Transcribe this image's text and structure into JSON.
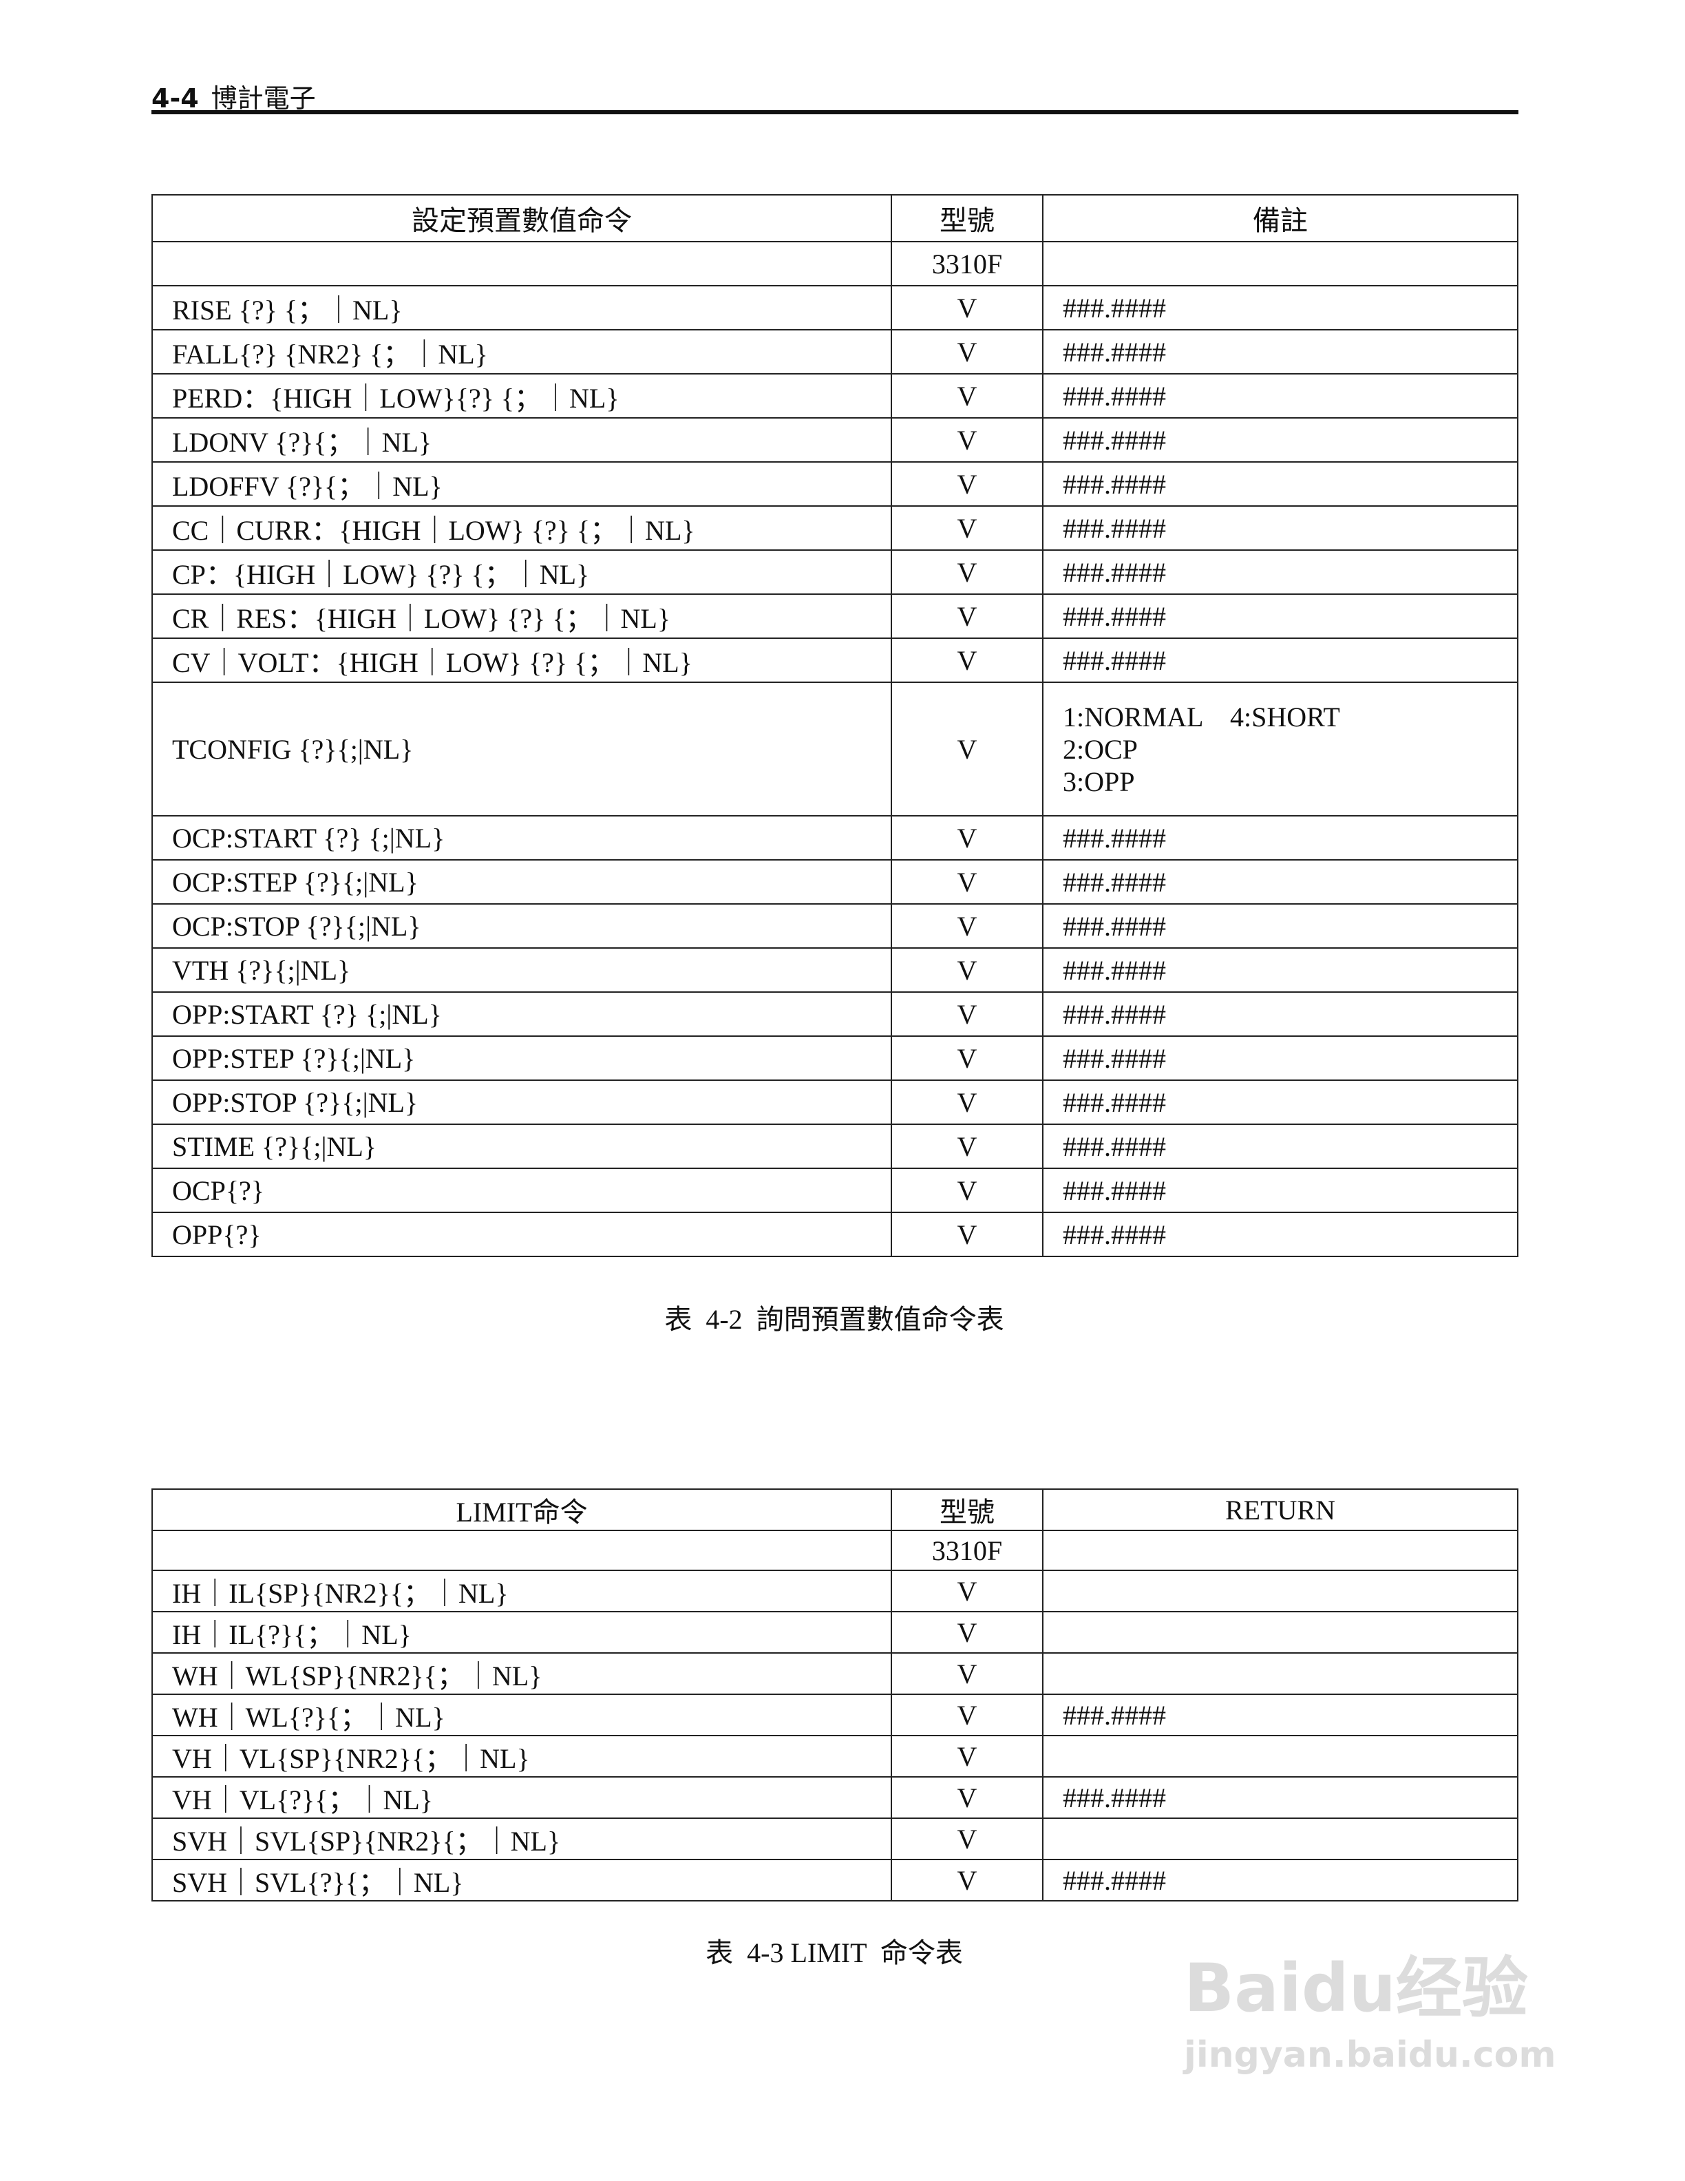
{
  "header": {
    "section": "4-4",
    "title": "博計電子"
  },
  "table1": {
    "columns": [
      "設定預置數值命令",
      "型號",
      "備註"
    ],
    "rows": [
      [
        null,
        "3310F",
        null
      ],
      [
        "RISE {?} {；｜NL}",
        "V",
        "###.####"
      ],
      [
        "FALL{?} {NR2} {；｜NL}",
        "V",
        "###.####"
      ],
      [
        "PERD：{HIGH｜LOW}{?} {；｜NL}",
        "V",
        "###.####"
      ],
      [
        "LDONV {?}{；｜NL}",
        "V",
        "###.####"
      ],
      [
        "LDOFFV {?}{；｜NL}",
        "V",
        "###.####"
      ],
      [
        "CC｜CURR：{HIGH｜LOW} {?} {；｜NL}",
        "V",
        "###.####"
      ],
      [
        "CP：{HIGH｜LOW} {?} {；｜NL}",
        "V",
        "###.####"
      ],
      [
        "CR｜RES：{HIGH｜LOW} {?} {；｜NL}",
        "V",
        "###.####"
      ],
      [
        "CV｜VOLT：{HIGH｜LOW} {?} {；｜NL}",
        "V",
        "###.####"
      ],
      [
        "TCONFIG {?}{;|NL}",
        "V",
        [
          "1:NORMAL    4:SHORT",
          "2:OCP",
          "3:OPP"
        ]
      ],
      [
        "OCP:START {?} {;|NL}",
        "V",
        "###.####"
      ],
      [
        "OCP:STEP {?}{;|NL}",
        "V",
        "###.####"
      ],
      [
        "OCP:STOP {?}{;|NL}",
        "V",
        "###.####"
      ],
      [
        "VTH {?}{;|NL}",
        "V",
        "###.####"
      ],
      [
        "OPP:START {?} {;|NL}",
        "V",
        "###.####"
      ],
      [
        "OPP:STEP {?}{;|NL}",
        "V",
        "###.####"
      ],
      [
        "OPP:STOP {?}{;|NL}",
        "V",
        "###.####"
      ],
      [
        "STIME {?}{;|NL}",
        "V",
        "###.####"
      ],
      [
        "OCP{?}",
        "V",
        "###.####"
      ],
      [
        "OPP{?}",
        "V",
        "###.####"
      ]
    ],
    "caption": "表  4-2  詢問預置數值命令表"
  },
  "table2": {
    "columns": [
      "LIMIT命令",
      "型號",
      "RETURN"
    ],
    "rows": [
      [
        null,
        "3310F",
        null
      ],
      [
        "IH｜IL{SP}{NR2}{；｜NL}",
        "V",
        null
      ],
      [
        "IH｜IL{?}{；｜NL}",
        "V",
        null
      ],
      [
        "WH｜WL{SP}{NR2}{；｜NL}",
        "V",
        null
      ],
      [
        "WH｜WL{?}{；｜NL}",
        "V",
        "###.####"
      ],
      [
        "VH｜VL{SP}{NR2}{；｜NL}",
        "V",
        null
      ],
      [
        "VH｜VL{?}{；｜NL}",
        "V",
        "###.####"
      ],
      [
        "SVH｜SVL{SP}{NR2}{；｜NL}",
        "V",
        null
      ],
      [
        "SVH｜SVL{?}{；｜NL}",
        "V",
        "###.####"
      ]
    ],
    "caption": "表  4-3 LIMIT  命令表"
  },
  "watermark": {
    "brand": "Baidu经验",
    "url": "jingyan.baidu.com"
  }
}
